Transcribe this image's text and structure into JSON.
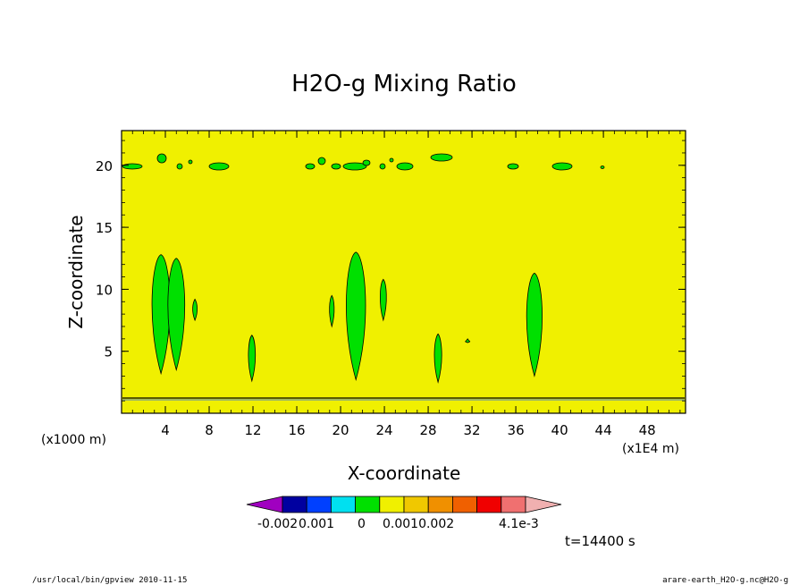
{
  "chart_data": {
    "type": "heatmap",
    "title": "H2O-g Mixing Ratio",
    "xlabel": "X-coordinate",
    "ylabel": "Z-coordinate",
    "x_unit_left": "(x1000 m)",
    "x_unit_right": "(x1E4 m)",
    "xlim": [
      0,
      51.5
    ],
    "ylim": [
      0,
      22.8
    ],
    "x_ticks": [
      4,
      8,
      12,
      16,
      20,
      24,
      28,
      32,
      36,
      40,
      44,
      48
    ],
    "y_ticks": [
      5,
      10,
      15,
      20
    ],
    "background_level_color": "#f0f000",
    "contour_level_color": "#00e000",
    "contour_line_color": "#000000",
    "colorbar": {
      "colors": [
        "#a000c0",
        "#0000a0",
        "#0040ff",
        "#00e0f0",
        "#00e000",
        "#f0f000",
        "#f0c800",
        "#f09000",
        "#f06000",
        "#f00000",
        "#f07070",
        "#f0b0b0"
      ],
      "labels": [
        "-0.002",
        "0.001",
        "0",
        "0.0010.002",
        "4.1e-3"
      ]
    },
    "cloud_features": [
      {
        "x": 3.6,
        "z_bottom": 3.2,
        "z_top": 12.8
      },
      {
        "x": 5.0,
        "z_bottom": 3.5,
        "z_top": 12.5
      },
      {
        "x": 6.7,
        "z_bottom": 7.5,
        "z_top": 9.2
      },
      {
        "x": 11.9,
        "z_bottom": 2.6,
        "z_top": 6.3
      },
      {
        "x": 19.2,
        "z_bottom": 7.0,
        "z_top": 9.5
      },
      {
        "x": 21.4,
        "z_bottom": 2.7,
        "z_top": 13.0
      },
      {
        "x": 23.9,
        "z_bottom": 7.5,
        "z_top": 10.8
      },
      {
        "x": 28.9,
        "z_bottom": 2.5,
        "z_top": 6.4
      },
      {
        "x": 31.6,
        "z_bottom": 5.7,
        "z_top": 6.0
      },
      {
        "x": 37.7,
        "z_bottom": 3.0,
        "z_top": 11.3
      }
    ]
  },
  "labels": {
    "time": "t=14400 s",
    "footer_left": "/usr/local/bin/gpview  2010-11-15",
    "footer_right": "arare-earth_H2O-g.nc@H2O-g"
  }
}
